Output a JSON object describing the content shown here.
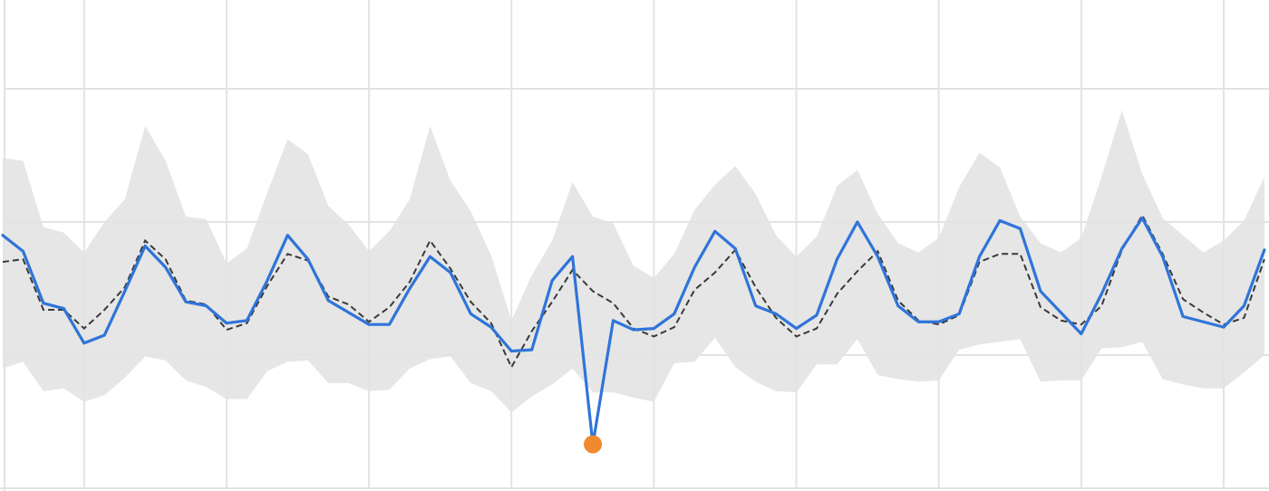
{
  "colors": {
    "actual": "#2f74d9",
    "expected": "#3a3a3a",
    "band": "#e6e6e6",
    "anomaly": "#ef8a2e",
    "grid": "#e3e3e3"
  },
  "chart_data": {
    "type": "line",
    "title": "",
    "xlabel": "",
    "ylabel": "",
    "grid": true,
    "legend": "none",
    "xlim": [
      0,
      63
    ],
    "ylim": [
      -1.2,
      2.4
    ],
    "x_gridlines": [
      4,
      11,
      18,
      25,
      32,
      39,
      46,
      53,
      60
    ],
    "y_gridlines": [
      0,
      1,
      2
    ],
    "x": [
      0,
      1,
      2,
      3,
      4,
      5,
      6,
      7,
      8,
      9,
      10,
      11,
      12,
      13,
      14,
      15,
      16,
      17,
      18,
      19,
      20,
      21,
      22,
      23,
      24,
      25,
      26,
      27,
      28,
      29,
      30,
      31,
      32,
      33,
      34,
      35,
      36,
      37,
      38,
      39,
      40,
      41,
      42,
      43,
      44,
      45,
      46,
      47,
      48,
      49,
      50,
      51,
      52,
      53,
      54,
      55,
      56,
      57,
      58,
      59,
      60,
      61,
      62
    ],
    "series": [
      {
        "role": "actual",
        "values": [
          0.9,
          0.78,
          0.39,
          0.35,
          0.09,
          0.15,
          0.48,
          0.82,
          0.66,
          0.4,
          0.37,
          0.24,
          0.26,
          0.56,
          0.9,
          0.72,
          0.41,
          0.32,
          0.23,
          0.23,
          0.5,
          0.74,
          0.62,
          0.31,
          0.21,
          0.03,
          0.04,
          0.56,
          0.74,
          -0.67,
          0.26,
          0.19,
          0.2,
          0.31,
          0.66,
          0.93,
          0.8,
          0.37,
          0.31,
          0.2,
          0.3,
          0.72,
          1.0,
          0.74,
          0.37,
          0.25,
          0.25,
          0.31,
          0.74,
          1.01,
          0.95,
          0.48,
          0.32,
          0.16,
          0.46,
          0.8,
          1.03,
          0.74,
          0.29,
          0.25,
          0.21,
          0.37,
          0.79
        ]
      },
      {
        "role": "expected",
        "values": [
          0.7,
          0.72,
          0.34,
          0.34,
          0.2,
          0.34,
          0.51,
          0.86,
          0.72,
          0.41,
          0.38,
          0.19,
          0.24,
          0.52,
          0.76,
          0.71,
          0.44,
          0.38,
          0.25,
          0.36,
          0.55,
          0.86,
          0.65,
          0.4,
          0.24,
          -0.09,
          0.18,
          0.4,
          0.64,
          0.48,
          0.39,
          0.2,
          0.14,
          0.21,
          0.49,
          0.62,
          0.79,
          0.51,
          0.28,
          0.14,
          0.2,
          0.46,
          0.63,
          0.78,
          0.41,
          0.26,
          0.23,
          0.3,
          0.7,
          0.76,
          0.76,
          0.36,
          0.26,
          0.23,
          0.37,
          0.79,
          1.05,
          0.76,
          0.42,
          0.32,
          0.23,
          0.28,
          0.72
        ]
      },
      {
        "role": "upper-bound",
        "values": [
          1.48,
          1.46,
          0.96,
          0.92,
          0.77,
          1.0,
          1.17,
          1.72,
          1.46,
          1.04,
          1.02,
          0.69,
          0.8,
          1.22,
          1.62,
          1.51,
          1.12,
          0.98,
          0.78,
          0.93,
          1.17,
          1.72,
          1.31,
          1.08,
          0.75,
          0.26,
          0.6,
          0.86,
          1.3,
          1.04,
          0.99,
          0.67,
          0.58,
          0.76,
          1.09,
          1.28,
          1.42,
          1.21,
          0.9,
          0.74,
          0.89,
          1.27,
          1.39,
          1.06,
          0.84,
          0.77,
          0.88,
          1.26,
          1.52,
          1.41,
          1.04,
          0.84,
          0.77,
          0.88,
          1.34,
          1.84,
          1.36,
          1.03,
          0.9,
          0.77,
          0.86,
          1.01,
          1.34
        ]
      },
      {
        "role": "lower-bound",
        "values": [
          -0.1,
          -0.05,
          -0.27,
          -0.25,
          -0.35,
          -0.3,
          -0.17,
          -0.01,
          -0.04,
          -0.19,
          -0.24,
          -0.33,
          -0.33,
          -0.12,
          -0.05,
          -0.04,
          -0.21,
          -0.21,
          -0.27,
          -0.26,
          -0.1,
          -0.03,
          -0.01,
          -0.21,
          -0.27,
          -0.43,
          -0.31,
          -0.22,
          -0.1,
          -0.28,
          -0.28,
          -0.32,
          -0.35,
          -0.06,
          -0.05,
          0.13,
          -0.09,
          -0.2,
          -0.27,
          -0.28,
          -0.07,
          -0.07,
          0.12,
          -0.15,
          -0.18,
          -0.2,
          -0.19,
          0.04,
          0.08,
          0.1,
          0.12,
          -0.2,
          -0.19,
          -0.19,
          0.05,
          0.06,
          0.1,
          -0.18,
          -0.22,
          -0.25,
          -0.25,
          -0.13,
          0.0
        ]
      }
    ],
    "anomalies": [
      {
        "x": 29,
        "y": -0.67
      }
    ]
  }
}
